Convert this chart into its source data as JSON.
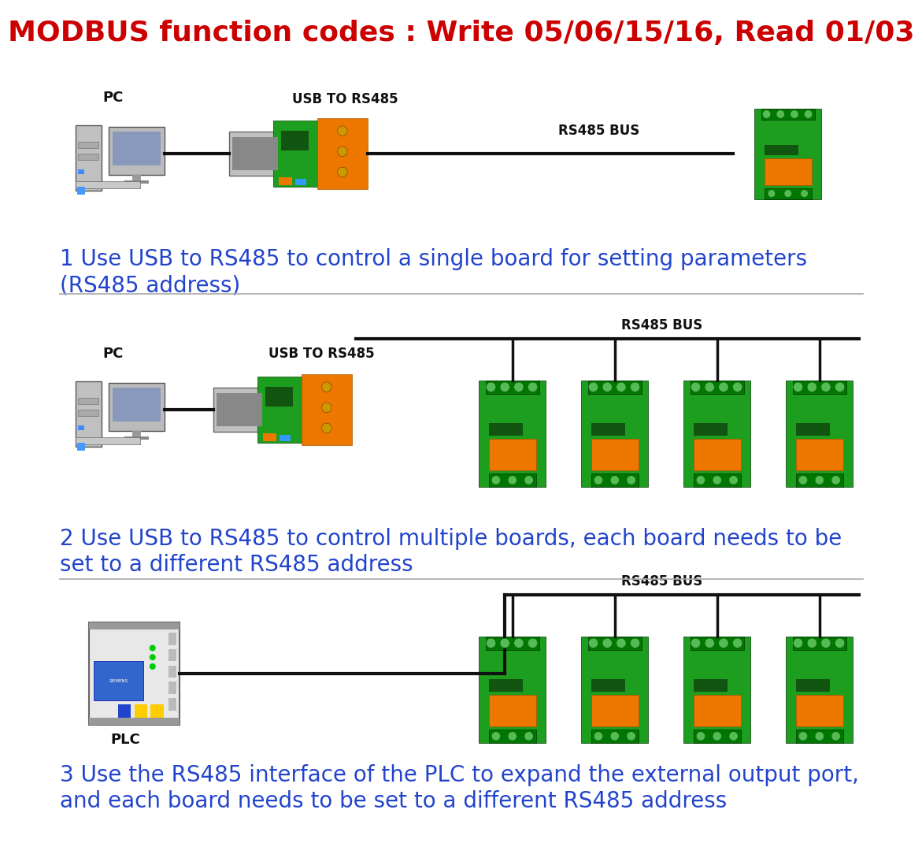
{
  "title": "MODBUS function codes : Write 05/06/15/16, Read 01/03",
  "title_color": "#cc0000",
  "title_fontsize": 26,
  "bg_color": "#ffffff",
  "text_color_blue": "#2244cc",
  "text_color_black": "#111111",
  "caption1_line1": "1 Use USB to RS485 to control a single board for setting parameters",
  "caption1_line2": "(RS485 address)",
  "caption2_line1": "2 Use USB to RS485 to control multiple boards, each board needs to be",
  "caption2_line2": "set to a different RS485 address",
  "caption3_line1": "3 Use the RS485 interface of the PLC to expand the external output port,",
  "caption3_line2": "and each board needs to be set to a different RS485 address",
  "label_pc": "PC",
  "label_usb": "USB TO RS485",
  "label_rs485bus": "RS485 BUS",
  "label_plc": "PLC",
  "divider_color": "#aaaaaa",
  "line_color": "#111111",
  "caption_fontsize": 20,
  "label_fontsize": 12,
  "pc_label_fontsize": 13
}
